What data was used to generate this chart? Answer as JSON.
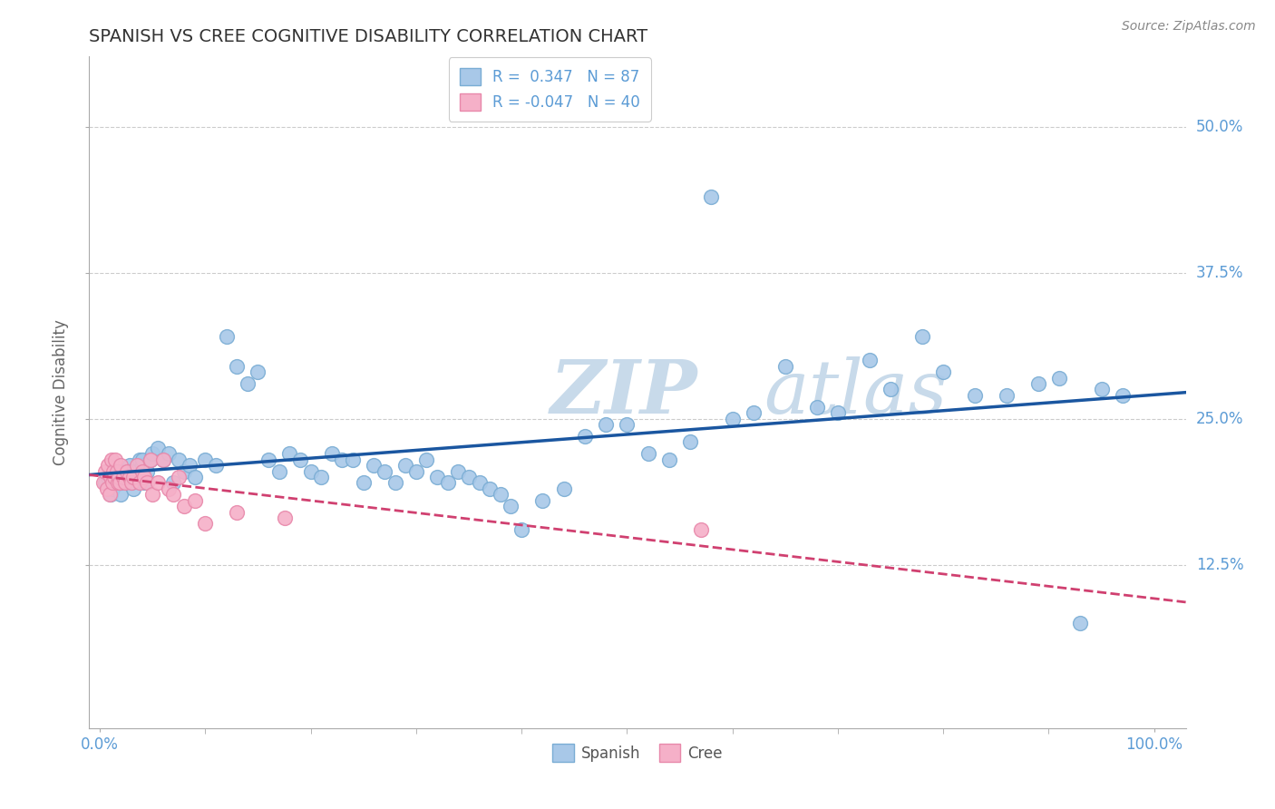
{
  "title": "SPANISH VS CREE COGNITIVE DISABILITY CORRELATION CHART",
  "source": "Source: ZipAtlas.com",
  "ylabel": "Cognitive Disability",
  "xlim": [
    -0.01,
    1.03
  ],
  "ylim": [
    -0.015,
    0.56
  ],
  "ytick_vals": [
    0.125,
    0.25,
    0.375,
    0.5
  ],
  "ytick_labels": [
    "12.5%",
    "25.0%",
    "37.5%",
    "50.0%"
  ],
  "xtick_vals": [
    0.0,
    1.0
  ],
  "xtick_labels": [
    "0.0%",
    "100.0%"
  ],
  "spanish_R": 0.347,
  "spanish_N": 87,
  "cree_R": -0.047,
  "cree_N": 40,
  "spanish_color": "#a8c8e8",
  "spanish_edge_color": "#7aadd4",
  "spanish_line_color": "#1a56a0",
  "cree_color": "#f5b0c8",
  "cree_edge_color": "#e888aa",
  "cree_line_color": "#d04070",
  "title_color": "#333333",
  "axis_label_color": "#5b9bd5",
  "grid_color": "#cccccc",
  "watermark_color": "#dce8f0",
  "spanish_x": [
    0.005,
    0.008,
    0.01,
    0.01,
    0.012,
    0.015,
    0.018,
    0.02,
    0.02,
    0.022,
    0.025,
    0.028,
    0.03,
    0.03,
    0.032,
    0.035,
    0.038,
    0.04,
    0.04,
    0.042,
    0.045,
    0.048,
    0.05,
    0.055,
    0.06,
    0.065,
    0.07,
    0.075,
    0.08,
    0.085,
    0.09,
    0.1,
    0.11,
    0.12,
    0.13,
    0.14,
    0.15,
    0.16,
    0.17,
    0.18,
    0.19,
    0.2,
    0.21,
    0.22,
    0.23,
    0.24,
    0.25,
    0.26,
    0.27,
    0.28,
    0.29,
    0.3,
    0.31,
    0.32,
    0.33,
    0.34,
    0.35,
    0.36,
    0.37,
    0.38,
    0.39,
    0.4,
    0.42,
    0.44,
    0.46,
    0.48,
    0.5,
    0.52,
    0.54,
    0.56,
    0.58,
    0.6,
    0.62,
    0.65,
    0.68,
    0.7,
    0.73,
    0.75,
    0.78,
    0.8,
    0.83,
    0.86,
    0.89,
    0.91,
    0.93,
    0.95,
    0.97
  ],
  "spanish_y": [
    0.195,
    0.2,
    0.185,
    0.205,
    0.19,
    0.195,
    0.2,
    0.185,
    0.195,
    0.205,
    0.2,
    0.21,
    0.195,
    0.205,
    0.19,
    0.2,
    0.215,
    0.21,
    0.215,
    0.195,
    0.205,
    0.215,
    0.22,
    0.225,
    0.215,
    0.22,
    0.195,
    0.215,
    0.205,
    0.21,
    0.2,
    0.215,
    0.21,
    0.32,
    0.295,
    0.28,
    0.29,
    0.215,
    0.205,
    0.22,
    0.215,
    0.205,
    0.2,
    0.22,
    0.215,
    0.215,
    0.195,
    0.21,
    0.205,
    0.195,
    0.21,
    0.205,
    0.215,
    0.2,
    0.195,
    0.205,
    0.2,
    0.195,
    0.19,
    0.185,
    0.175,
    0.155,
    0.18,
    0.19,
    0.235,
    0.245,
    0.245,
    0.22,
    0.215,
    0.23,
    0.44,
    0.25,
    0.255,
    0.295,
    0.26,
    0.255,
    0.3,
    0.275,
    0.32,
    0.29,
    0.27,
    0.27,
    0.28,
    0.285,
    0.075,
    0.275,
    0.27
  ],
  "cree_x": [
    0.003,
    0.005,
    0.007,
    0.008,
    0.009,
    0.01,
    0.011,
    0.012,
    0.013,
    0.014,
    0.015,
    0.016,
    0.017,
    0.018,
    0.019,
    0.02,
    0.022,
    0.024,
    0.026,
    0.028,
    0.03,
    0.032,
    0.035,
    0.038,
    0.04,
    0.042,
    0.045,
    0.048,
    0.05,
    0.055,
    0.06,
    0.065,
    0.07,
    0.075,
    0.08,
    0.09,
    0.1,
    0.13,
    0.175,
    0.57
  ],
  "cree_y": [
    0.195,
    0.205,
    0.19,
    0.21,
    0.185,
    0.2,
    0.215,
    0.195,
    0.205,
    0.2,
    0.215,
    0.205,
    0.195,
    0.2,
    0.195,
    0.21,
    0.2,
    0.195,
    0.205,
    0.2,
    0.195,
    0.2,
    0.21,
    0.195,
    0.205,
    0.2,
    0.195,
    0.215,
    0.185,
    0.195,
    0.215,
    0.19,
    0.185,
    0.2,
    0.175,
    0.18,
    0.16,
    0.17,
    0.165,
    0.155
  ]
}
